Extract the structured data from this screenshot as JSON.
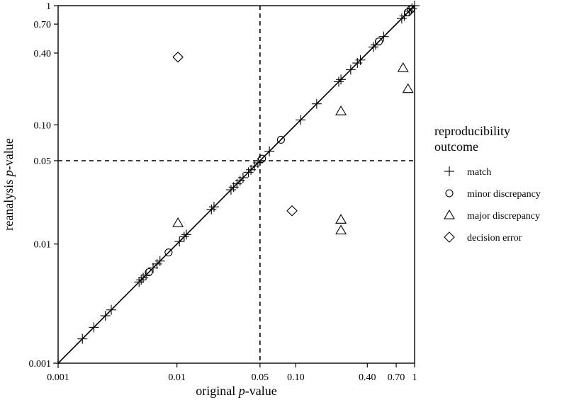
{
  "chart_data": {
    "type": "scatter",
    "x_scale": "log",
    "y_scale": "log",
    "xlim": [
      0.001,
      1
    ],
    "ylim": [
      0.001,
      1
    ],
    "xlabel": {
      "prefix": "original ",
      "italic": "p",
      "suffix": "-value"
    },
    "ylabel": {
      "prefix": "reanalysis ",
      "italic": "p",
      "suffix": "-value"
    },
    "x_ticks": [
      {
        "value": 0.001,
        "label": "0.001"
      },
      {
        "value": 0.01,
        "label": "0.01"
      },
      {
        "value": 0.05,
        "label": "0.05"
      },
      {
        "value": 0.1,
        "label": "0.10"
      },
      {
        "value": 0.4,
        "label": "0.40"
      },
      {
        "value": 0.7,
        "label": "0.70"
      },
      {
        "value": 1,
        "label": "1"
      }
    ],
    "y_ticks": [
      {
        "value": 0.001,
        "label": "0.001"
      },
      {
        "value": 0.01,
        "label": "0.01"
      },
      {
        "value": 0.05,
        "label": "0.05"
      },
      {
        "value": 0.1,
        "label": "0.10"
      },
      {
        "value": 0.4,
        "label": "0.40"
      },
      {
        "value": 0.7,
        "label": "0.70"
      },
      {
        "value": 1,
        "label": "1"
      }
    ],
    "reference_lines": [
      {
        "type": "identity",
        "style": "solid"
      },
      {
        "type": "vertical",
        "value": 0.05,
        "style": "dashed"
      },
      {
        "type": "horizontal",
        "value": 0.05,
        "style": "dashed"
      }
    ],
    "grid": false,
    "legend": {
      "title_lines": [
        "reproducibility",
        "outcome"
      ],
      "position": "right"
    },
    "series": [
      {
        "name": "match",
        "marker": "plus",
        "points": [
          [
            0.001,
            0.001
          ],
          [
            0.0016,
            0.0016
          ],
          [
            0.002,
            0.002
          ],
          [
            0.0025,
            0.0025
          ],
          [
            0.0028,
            0.0028
          ],
          [
            0.0048,
            0.0048
          ],
          [
            0.005,
            0.005
          ],
          [
            0.0052,
            0.0052
          ],
          [
            0.0055,
            0.0055
          ],
          [
            0.0063,
            0.0063
          ],
          [
            0.0068,
            0.0068
          ],
          [
            0.0072,
            0.0072
          ],
          [
            0.0105,
            0.0105
          ],
          [
            0.0115,
            0.0115
          ],
          [
            0.012,
            0.012
          ],
          [
            0.0195,
            0.0195
          ],
          [
            0.0205,
            0.0205
          ],
          [
            0.0285,
            0.0285
          ],
          [
            0.03,
            0.03
          ],
          [
            0.032,
            0.032
          ],
          [
            0.034,
            0.034
          ],
          [
            0.036,
            0.036
          ],
          [
            0.04,
            0.04
          ],
          [
            0.042,
            0.042
          ],
          [
            0.045,
            0.045
          ],
          [
            0.048,
            0.048
          ],
          [
            0.06,
            0.06
          ],
          [
            0.11,
            0.11
          ],
          [
            0.15,
            0.15
          ],
          [
            0.23,
            0.23
          ],
          [
            0.24,
            0.24
          ],
          [
            0.29,
            0.29
          ],
          [
            0.33,
            0.33
          ],
          [
            0.35,
            0.35
          ],
          [
            0.45,
            0.45
          ],
          [
            0.47,
            0.47
          ],
          [
            0.55,
            0.55
          ],
          [
            0.78,
            0.78
          ],
          [
            0.82,
            0.82
          ],
          [
            0.9,
            0.9
          ],
          [
            0.95,
            0.95
          ],
          [
            1.0,
            1.0
          ]
        ]
      },
      {
        "name": "minor discrepancy",
        "marker": "circle",
        "points": [
          [
            0.0058,
            0.0058
          ],
          [
            0.0085,
            0.0085
          ],
          [
            0.052,
            0.052
          ],
          [
            0.075,
            0.075
          ],
          [
            0.5,
            0.5
          ],
          [
            0.88,
            0.88
          ],
          [
            0.93,
            0.93
          ]
        ]
      },
      {
        "name": "major discrepancy",
        "marker": "triangle",
        "points": [
          [
            0.0102,
            0.015
          ],
          [
            0.24,
            0.016
          ],
          [
            0.24,
            0.013
          ],
          [
            0.24,
            0.13
          ],
          [
            0.8,
            0.3
          ],
          [
            0.88,
            0.2
          ]
        ]
      },
      {
        "name": "decision error",
        "marker": "diamond",
        "points": [
          [
            0.0102,
            0.37
          ],
          [
            0.093,
            0.019
          ]
        ]
      }
    ]
  }
}
